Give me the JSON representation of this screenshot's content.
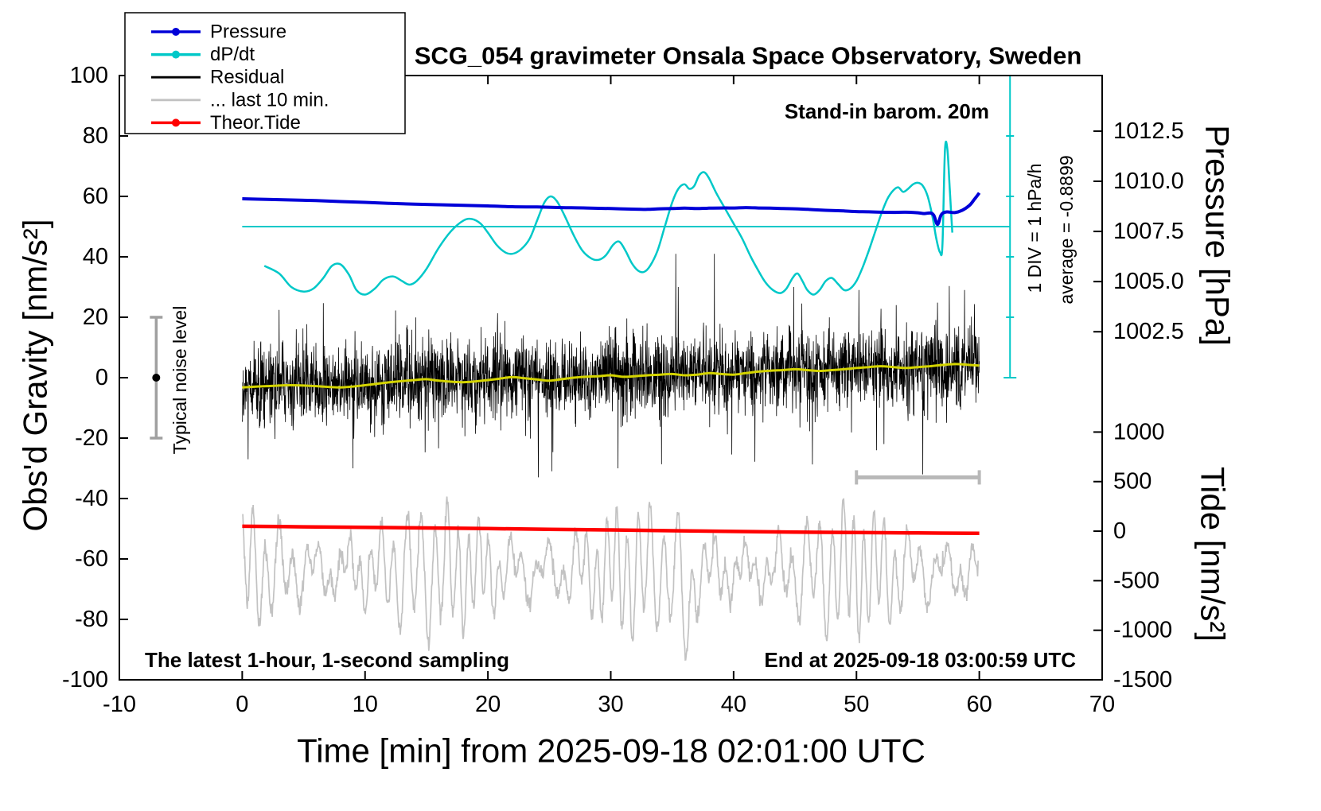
{
  "title": "SCG_054 gravimeter Onsala Space Observatory, Sweden",
  "annotations": {
    "barometer": "Stand-in barom. 20m",
    "sampling": "The latest 1-hour, 1-second sampling",
    "end_time": "End at 2025-09-18 03:00:59 UTC",
    "div_scale": "1 DIV = 1 hPa/h",
    "average": "average = -0.8899",
    "noise_level": "Typical noise level"
  },
  "legend": [
    {
      "label": "Pressure",
      "color": "#0000d8",
      "marker": true
    },
    {
      "label": "dP/dt",
      "color": "#00c8c8",
      "marker": true
    },
    {
      "label": "Residual",
      "color": "#000000",
      "marker": false
    },
    {
      "label": "... last 10 min.",
      "color": "#c2c2c2",
      "marker": false
    },
    {
      "label": "Theor.Tide",
      "color": "#ff0000",
      "marker": true
    }
  ],
  "colors": {
    "pressure": "#0000d8",
    "dpdt": "#00c8c8",
    "residual": "#000000",
    "last10": "#c2c2c2",
    "tide": "#ff0000",
    "filtered": "#d4d400",
    "frame": "#000000",
    "noise_bar": "#a0a0a0",
    "scale_bar": "#b8b8b8"
  },
  "chart_data": {
    "type": "line",
    "xlabel": "Time [min] from 2025-09-18 02:01:00 UTC",
    "ylabel_left": "Obs'd Gravity [nm/s²]",
    "ylabel_pressure": "Pressure [hPa]",
    "ylabel_tide": "Tide [nm/s²]",
    "xlim": [
      -10,
      70
    ],
    "ylim_left": [
      -100,
      100
    ],
    "grid": false,
    "legend_position": "top-left inside",
    "x_ticks": [
      -10,
      0,
      10,
      20,
      30,
      40,
      50,
      60,
      70
    ],
    "y_ticks_left": [
      -100,
      -80,
      -60,
      -40,
      -20,
      0,
      20,
      40,
      60,
      80,
      100
    ],
    "pressure_axis": {
      "hPa_ref": 1007.5,
      "g_ref": 48.4,
      "g_per_hPa": 6.64,
      "ticks": [
        {
          "value": 1012.5,
          "label": "1012.5"
        },
        {
          "value": 1010.0,
          "label": "1010.0"
        },
        {
          "value": 1007.5,
          "label": "1007.5"
        },
        {
          "value": 1005.0,
          "label": "1005.0"
        },
        {
          "value": 1002.5,
          "label": "1002.5"
        }
      ]
    },
    "dpdt_axis": {
      "g_zero": 50,
      "g_per_div": 20,
      "units_per_div": 1,
      "unit": "hPa/h"
    },
    "tide_axis": {
      "g_zero": -50.8,
      "g_per_unit": 0.0328,
      "ticks": [
        {
          "value": 1000,
          "label": "1000"
        },
        {
          "value": 500,
          "label": "500"
        },
        {
          "value": 0,
          "label": "0"
        },
        {
          "value": -500,
          "label": "-500"
        },
        {
          "value": -1000,
          "label": "-1000"
        },
        {
          "value": -1500,
          "label": "-1500"
        }
      ]
    },
    "dpdt_ref": {
      "x_min": 0,
      "x_max": 62.5,
      "g_zero": 50,
      "g_min": 0,
      "g_max": 100
    },
    "noise_bar": {
      "x": -7,
      "g_min": -20,
      "g_max": 20,
      "g_dot": 0
    },
    "scale_bar": {
      "x_min": 50,
      "x_max": 60,
      "g": -33
    },
    "series": {
      "pressure_hPa": {
        "x": [
          0,
          2,
          4,
          6,
          8,
          10,
          12,
          14,
          16,
          18,
          20,
          22,
          24,
          26,
          28,
          30,
          32,
          33,
          34,
          35,
          36,
          37,
          38,
          39,
          40,
          41,
          42,
          43,
          44,
          45,
          46,
          47,
          48,
          49,
          50,
          51,
          52,
          53,
          54,
          55,
          55.5,
          56,
          56.3,
          56.6,
          56.9,
          57.3,
          58,
          58.6,
          59.2,
          59.6,
          60
        ],
        "v": [
          1009.13,
          1009.1,
          1009.07,
          1009.04,
          1008.99,
          1008.95,
          1008.9,
          1008.86,
          1008.83,
          1008.8,
          1008.77,
          1008.73,
          1008.72,
          1008.69,
          1008.67,
          1008.64,
          1008.61,
          1008.6,
          1008.63,
          1008.64,
          1008.66,
          1008.64,
          1008.66,
          1008.67,
          1008.67,
          1008.69,
          1008.67,
          1008.66,
          1008.64,
          1008.63,
          1008.6,
          1008.57,
          1008.54,
          1008.52,
          1008.49,
          1008.48,
          1008.46,
          1008.45,
          1008.46,
          1008.43,
          1008.39,
          1008.42,
          1008.3,
          1007.85,
          1008.33,
          1008.47,
          1008.44,
          1008.55,
          1008.8,
          1009.1,
          1009.42
        ]
      },
      "dpdt_hPa_per_h": {
        "x": [
          1.8,
          3,
          4,
          5,
          5.8,
          6.6,
          7.3,
          8,
          8.7,
          9.3,
          10,
          10.8,
          11.5,
          12.3,
          13,
          13.6,
          14.2,
          15,
          16,
          17,
          18,
          18.7,
          19.4,
          20,
          20.7,
          21.4,
          22,
          22.7,
          23.4,
          24,
          24.6,
          25.1,
          25.6,
          26.2,
          27,
          27.7,
          28.4,
          29,
          29.6,
          30.2,
          30.7,
          31.2,
          31.7,
          32.2,
          32.7,
          33.2,
          33.8,
          34.4,
          35,
          35.5,
          36,
          36.4,
          36.8,
          37.2,
          37.6,
          38,
          38.6,
          39.3,
          40,
          40.7,
          41.4,
          42,
          42.6,
          43.2,
          43.8,
          44.3,
          44.8,
          45.2,
          45.6,
          46,
          46.5,
          47,
          47.5,
          48,
          48.5,
          49,
          49.5,
          50,
          50.5,
          51,
          51.5,
          52,
          52.5,
          53,
          53.4,
          53.8,
          54.2,
          54.6,
          55,
          55.4,
          55.8,
          56.2,
          56.5,
          56.8,
          57,
          57.2,
          57.4,
          57.6,
          57.8
        ],
        "v": [
          -0.65,
          -0.775,
          -1.0,
          -1.075,
          -1.025,
          -0.85,
          -0.65,
          -0.625,
          -0.8,
          -1.05,
          -1.125,
          -1.025,
          -0.875,
          -0.825,
          -0.9,
          -0.96,
          -0.9,
          -0.7,
          -0.35,
          -0.075,
          0.1,
          0.125,
          0.05,
          -0.1,
          -0.3,
          -0.425,
          -0.45,
          -0.375,
          -0.2,
          0.1,
          0.4,
          0.5,
          0.425,
          0.2,
          -0.15,
          -0.4,
          -0.525,
          -0.55,
          -0.475,
          -0.3,
          -0.25,
          -0.4,
          -0.6,
          -0.725,
          -0.75,
          -0.65,
          -0.4,
          0.0,
          0.4,
          0.625,
          0.7,
          0.625,
          0.675,
          0.85,
          0.9,
          0.8,
          0.55,
          0.3,
          0.05,
          -0.2,
          -0.5,
          -0.725,
          -0.925,
          -1.05,
          -1.1,
          -1.025,
          -0.85,
          -0.775,
          -0.9,
          -1.05,
          -1.125,
          -1.05,
          -0.9,
          -0.85,
          -0.95,
          -1.05,
          -1.025,
          -0.9,
          -0.675,
          -0.4,
          -0.1,
          0.2,
          0.45,
          0.6,
          0.65,
          0.575,
          0.625,
          0.7,
          0.725,
          0.675,
          0.5,
          0.15,
          -0.2,
          -0.425,
          -0.3,
          1.25,
          1.28,
          0.6,
          -0.1
        ]
      },
      "residual_filtered": {
        "x": [
          0,
          2,
          4,
          6,
          8,
          10,
          12,
          14,
          15,
          16,
          18,
          20,
          21,
          22,
          23,
          24,
          25,
          26,
          27,
          28,
          29,
          30,
          31,
          32,
          33,
          34,
          35,
          36,
          37,
          38,
          39,
          40,
          41,
          42,
          43,
          44,
          45,
          46,
          47,
          48,
          49,
          50,
          51,
          52,
          53,
          54,
          55,
          56,
          57,
          58,
          59,
          60
        ],
        "v": [
          -3.2,
          -2.8,
          -2.5,
          -2.8,
          -3.2,
          -2.5,
          -1.5,
          -0.8,
          -0.5,
          -1.0,
          -1.5,
          -0.8,
          -0.3,
          0.2,
          -0.2,
          -0.6,
          -1.0,
          -0.5,
          0,
          0.3,
          0.5,
          0.8,
          0.3,
          0.5,
          0.8,
          1.0,
          1.2,
          0.8,
          1.0,
          1.5,
          1.2,
          1.0,
          1.5,
          2.0,
          2.3,
          2.5,
          2.8,
          2.5,
          2.2,
          2.5,
          2.8,
          3.2,
          3.5,
          3.8,
          3.5,
          3.2,
          3.5,
          3.8,
          4.2,
          4.5,
          4.3,
          4.0
        ]
      },
      "theor_tide_nm_s2": {
        "x": [
          0,
          5,
          10,
          15,
          20,
          25,
          30,
          35,
          40,
          45,
          50,
          55,
          60
        ],
        "v": [
          49,
          44,
          38.5,
          32.5,
          26,
          19,
          12,
          4.5,
          -3,
          -9.5,
          -14.5,
          -18.5,
          -21.5
        ]
      }
    },
    "noise": {
      "residual": {
        "seed": 1234567,
        "x_min": 0,
        "x_max": 60,
        "points": 3000,
        "std": 6.5,
        "tail_prob": 0.05,
        "tail_std": 14,
        "clip": [
          -33,
          41
        ],
        "spikes": [
          {
            "x": 9.0,
            "v": -30
          },
          {
            "x": 25.2,
            "v": -31
          },
          {
            "x": 30.6,
            "v": -30
          },
          {
            "x": 35.3,
            "v": 41
          },
          {
            "x": 35.5,
            "v": 30
          },
          {
            "x": 44.9,
            "v": 30
          },
          {
            "x": 50.2,
            "v": 29
          },
          {
            "x": 55.4,
            "v": -32
          },
          {
            "x": 58.8,
            "v": 29
          }
        ]
      },
      "last10": {
        "seed": 424242,
        "x_min": 0.05,
        "x_max": 59.9,
        "points": 1500,
        "mean": -64,
        "amp": 15,
        "am_depth": 0.45,
        "am_freq": 0.37,
        "carrier_period": 0.95,
        "fm_depth": 2.0,
        "fm_freq": 0.6,
        "slow_amp": 6,
        "slow_period": 2.7,
        "noise_std": 1.5,
        "dip_amp": -20,
        "dip_x": 36.2,
        "dip_width": 0.4,
        "clip": [
          -96,
          -35
        ]
      }
    }
  }
}
